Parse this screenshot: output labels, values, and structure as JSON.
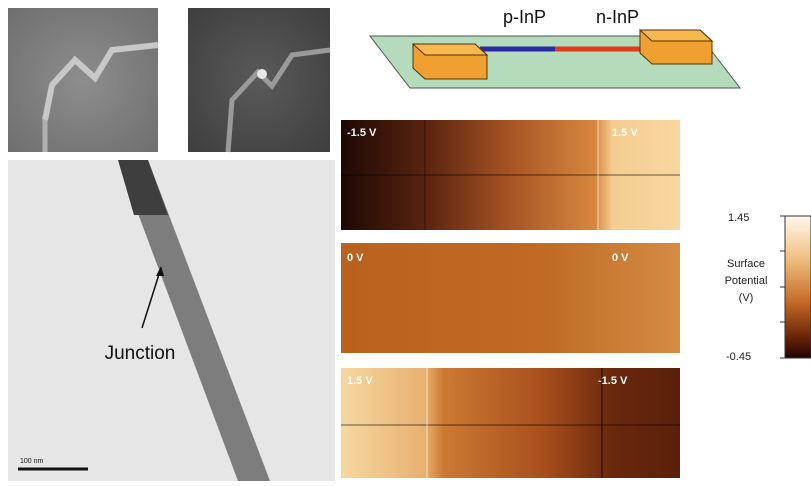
{
  "schematic": {
    "labels": [
      "p-InP",
      "n-InP"
    ]
  },
  "optical_images": {
    "count_hint": null
  },
  "tem_image": {
    "annotation": "Junction",
    "scale_bar": "100 nm"
  },
  "kpfm_maps": [
    {
      "left_label": "-1.5 V",
      "right_label": "1.5 V"
    },
    {
      "left_label": "0 V",
      "right_label": "0 V"
    },
    {
      "left_label": "1.5 V",
      "right_label": "-1.5 V"
    }
  ],
  "colorbar": {
    "max_label": "1.45",
    "min_label": "-0.45",
    "title": [
      "Surface",
      "Potential",
      "(V)"
    ]
  }
}
